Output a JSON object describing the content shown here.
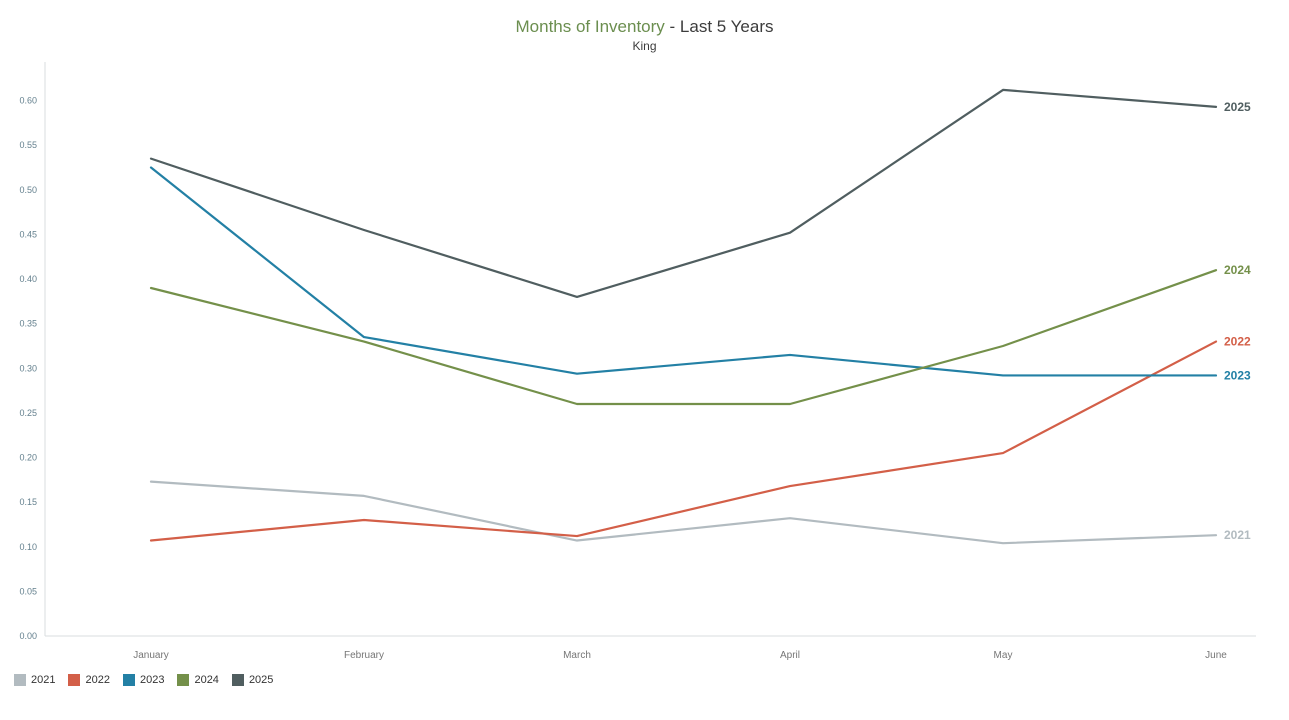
{
  "header": {
    "title_main": "Months of Inventory",
    "title_suffix": " - Last 5 Years",
    "subtitle": "King"
  },
  "chart_data": {
    "type": "line",
    "title": "Months of Inventory - Last 5 Years",
    "subtitle": "King",
    "x": [
      "January",
      "February",
      "March",
      "April",
      "May",
      "June"
    ],
    "series": [
      {
        "name": "2021",
        "color": "#b2bbc0",
        "values": [
          0.173,
          0.157,
          0.107,
          0.132,
          0.104,
          0.113
        ]
      },
      {
        "name": "2022",
        "color": "#d35f48",
        "values": [
          0.107,
          0.13,
          0.112,
          0.168,
          0.205,
          0.33
        ]
      },
      {
        "name": "2023",
        "color": "#2380a5",
        "values": [
          0.525,
          0.335,
          0.294,
          0.315,
          0.292,
          0.292
        ]
      },
      {
        "name": "2024",
        "color": "#74904a",
        "values": [
          0.39,
          0.33,
          0.26,
          0.26,
          0.325,
          0.41
        ]
      },
      {
        "name": "2025",
        "color": "#505e60",
        "values": [
          0.535,
          0.455,
          0.38,
          0.452,
          0.612,
          0.593
        ]
      }
    ],
    "ylim": [
      0,
      0.65
    ],
    "yticks": [
      0.0,
      0.05,
      0.1,
      0.15,
      0.2,
      0.25,
      0.3,
      0.35,
      0.4,
      0.45,
      0.5,
      0.55,
      0.6
    ],
    "grid": false,
    "legend_position": "bottom-left",
    "end_labels": true,
    "xlabel": "",
    "ylabel": ""
  },
  "colors": {
    "title_green": "#6b8e4f",
    "title_dark": "#3c3c3c",
    "axis_line": "#d9dddf",
    "y_tick_label": "#64808e",
    "x_axis_label": "#767676",
    "background": "#ffffff"
  }
}
